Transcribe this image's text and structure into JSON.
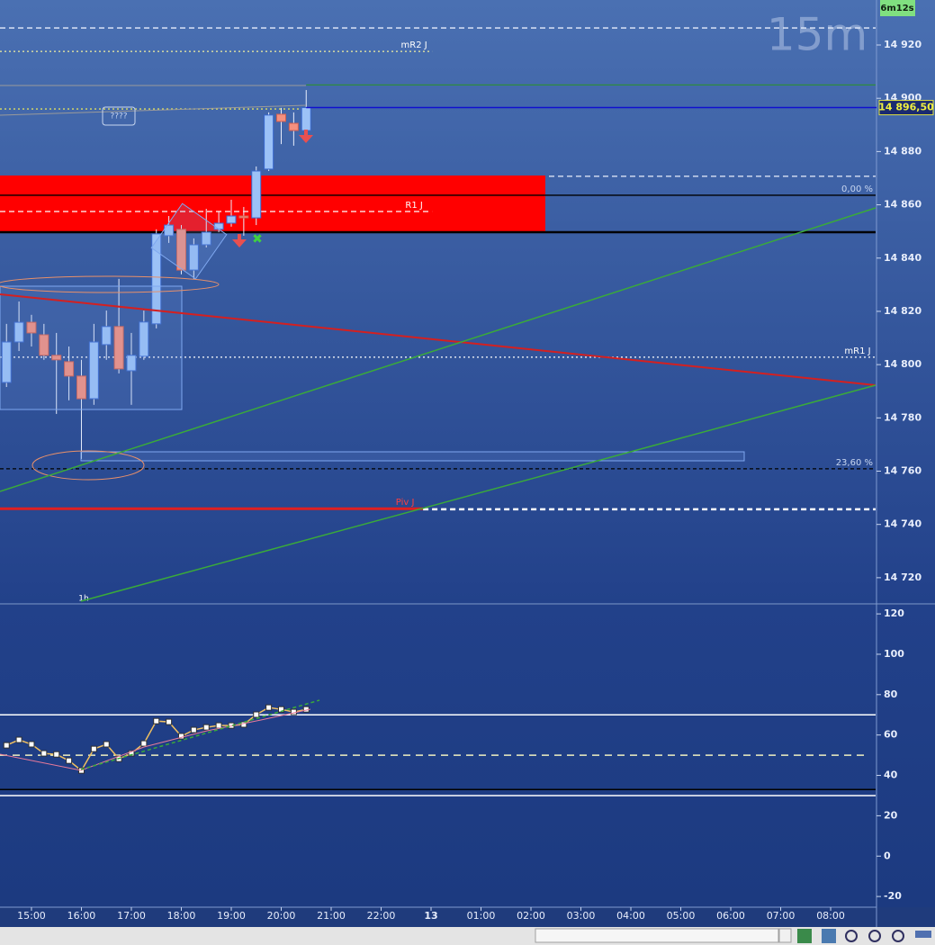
{
  "chart_data": [
    {
      "type": "candlestick",
      "title": "15m",
      "timer": "6m12s",
      "x": [
        14.5,
        14.75,
        15,
        15.25,
        15.5,
        15.75,
        16,
        16.25,
        16.5,
        16.75,
        17,
        17.25,
        17.5,
        17.75,
        18,
        18.25,
        18.5,
        18.75,
        19,
        19.25,
        19.5,
        19.75,
        20,
        20.25,
        20.5
      ],
      "open": [
        14793.3,
        14808.5,
        14815.9,
        14811.2,
        14803.5,
        14801.1,
        14795.7,
        14787.2,
        14807.5,
        14814.3,
        14797.7,
        14803.1,
        14815.3,
        14848.4,
        14850.8,
        14835.5,
        14845.0,
        14850.8,
        14853.1,
        14855.8,
        14855.1,
        14873.4,
        14894.0,
        14890.6,
        14887.9
      ],
      "high": [
        14815.3,
        14823.7,
        14818.7,
        14815.3,
        14811.9,
        14806.8,
        14801.8,
        14815.3,
        14820.3,
        14832.2,
        14811.9,
        14820.3,
        14850.8,
        14855.8,
        14852.4,
        14847.4,
        14858.5,
        14857.5,
        14861.9,
        14859.2,
        14874.4,
        14894.7,
        14896.4,
        14894.7,
        14903.1
      ],
      "low": [
        14791.6,
        14805.1,
        14806.8,
        14801.8,
        14781.5,
        14786.6,
        14764.6,
        14784.9,
        14801.8,
        14796.7,
        14784.9,
        14801.8,
        14813.6,
        14845.7,
        14833.9,
        14832.2,
        14844.0,
        14849.7,
        14851.8,
        14848.4,
        14852.4,
        14872.7,
        14882.8,
        14882.2,
        14887.2
      ],
      "close": [
        14808.5,
        14815.9,
        14811.9,
        14803.5,
        14801.8,
        14795.7,
        14787.2,
        14808.5,
        14814.3,
        14798.4,
        14803.5,
        14816.0,
        14849.1,
        14852.4,
        14835.5,
        14845.0,
        14849.7,
        14853.1,
        14855.8,
        14855.1,
        14872.7,
        14893.7,
        14891.3,
        14887.9,
        14896.5
      ],
      "up_color": "#9cc2f7",
      "down_color": "#f4907f",
      "xlim": [
        14.37,
        31.9
      ],
      "ylim": [
        14710.5,
        14936.9
      ],
      "yticks": [
        {
          "value": 14720,
          "label": "14 720"
        },
        {
          "value": 14740,
          "label": "14 740"
        },
        {
          "value": 14760,
          "label": "14 760"
        },
        {
          "value": 14780,
          "label": "14 780"
        },
        {
          "value": 14800,
          "label": "14 800"
        },
        {
          "value": 14820,
          "label": "14 820"
        },
        {
          "value": 14840,
          "label": "14 840"
        },
        {
          "value": 14860,
          "label": "14 860"
        },
        {
          "value": 14880,
          "label": "14 880"
        },
        {
          "value": 14900,
          "label": "14 900"
        },
        {
          "value": 14920,
          "label": "14 920"
        }
      ],
      "last_price": {
        "value": 14896.5,
        "label": "14 896,50"
      },
      "zone": [
        14849.7,
        14871.0
      ],
      "zone_color": "#ff0000",
      "levels": [
        {
          "value": 14926.4,
          "color": "#e8eefc",
          "dash": "6 4"
        },
        {
          "label": "mR2 J",
          "value": 14917.6,
          "color": "#f2f2a0",
          "dash": "2 3",
          "to": 23.02
        },
        {
          "value": 14905.0,
          "color": "#2e8b3e",
          "dash": "",
          "from": 20.5
        },
        {
          "value": 14896.0,
          "color": "#e0e060",
          "dash": "2 3",
          "to": 20.5
        },
        {
          "value": 14870.7,
          "color": "#e8eefc",
          "dash": "6 4",
          "from": 25.36
        },
        {
          "value": 14863.6,
          "color": "#000000",
          "dash": ""
        },
        {
          "label": "R1 J",
          "value": 14857.5,
          "color": "#ffffff",
          "dash": "6 4",
          "to": 23.02
        },
        {
          "value": 14849.7,
          "color": "#000000",
          "dash": "",
          "width": 2.5
        },
        {
          "label": "mR1 J",
          "value": 14802.8,
          "color": "#ffffff",
          "dash": "2 3"
        },
        {
          "value": 14760.9,
          "color": "#000000",
          "dash": "4 3"
        },
        {
          "label": "Piv J",
          "value": 14745.9,
          "color": "#e02020",
          "dash": "",
          "width": 3,
          "to": 22.84
        },
        {
          "value": 14745.7,
          "color": "#ffffff",
          "dash": "6 4",
          "width": 2.5,
          "from": 22.84
        }
      ],
      "fib_levels": [
        {
          "name": "0,00 %",
          "price": 14863.6
        },
        {
          "name": "23,60 %",
          "price": 14760.9
        }
      ],
      "annotations": [
        "????",
        "1h"
      ]
    },
    {
      "type": "line",
      "color": "#f0c060",
      "marker": "square",
      "x": [
        14.5,
        14.75,
        15,
        15.25,
        15.5,
        15.75,
        16,
        16.25,
        16.5,
        16.75,
        17,
        17.25,
        17.5,
        17.75,
        18,
        18.25,
        18.5,
        18.75,
        19,
        19.25,
        19.5,
        19.75,
        20,
        20.25,
        20.5
      ],
      "values": [
        54.9,
        57.6,
        55.4,
        50.9,
        50.4,
        47.3,
        42.4,
        53.1,
        55.4,
        48.2,
        50.9,
        55.8,
        66.9,
        66.5,
        59.4,
        62.5,
        63.8,
        64.7,
        64.7,
        65.2,
        70.1,
        73.6,
        72.7,
        71.4,
        72.7
      ],
      "xlim": [
        14.37,
        31.9
      ],
      "ylim": [
        -25.3,
        124.5
      ],
      "yticks": [
        -20,
        0,
        20,
        40,
        60,
        80,
        100,
        120
      ],
      "hlines": [
        {
          "value": 70,
          "color": "#ffffff",
          "dash": ""
        },
        {
          "value": 50,
          "color": "#f0f0c0",
          "dash": "8 6"
        },
        {
          "value": 33,
          "color": "#000000",
          "dash": ""
        },
        {
          "value": 30,
          "color": "#ffffff",
          "dash": ""
        }
      ],
      "xticks": [
        {
          "value": 15,
          "label": "15:00"
        },
        {
          "value": 16,
          "label": "16:00"
        },
        {
          "value": 17,
          "label": "17:00"
        },
        {
          "value": 18,
          "label": "18:00"
        },
        {
          "value": 19,
          "label": "19:00"
        },
        {
          "value": 20,
          "label": "20:00"
        },
        {
          "value": 21,
          "label": "21:00"
        },
        {
          "value": 22,
          "label": "22:00"
        },
        {
          "value": 23,
          "label": "13"
        },
        {
          "value": 24,
          "label": "01:00"
        },
        {
          "value": 25,
          "label": "02:00"
        },
        {
          "value": 26,
          "label": "03:00"
        },
        {
          "value": 27,
          "label": "04:00"
        },
        {
          "value": 28,
          "label": "05:00"
        },
        {
          "value": 29,
          "label": "06:00"
        },
        {
          "value": 30,
          "label": "07:00"
        },
        {
          "value": 31,
          "label": "08:00"
        }
      ]
    }
  ]
}
